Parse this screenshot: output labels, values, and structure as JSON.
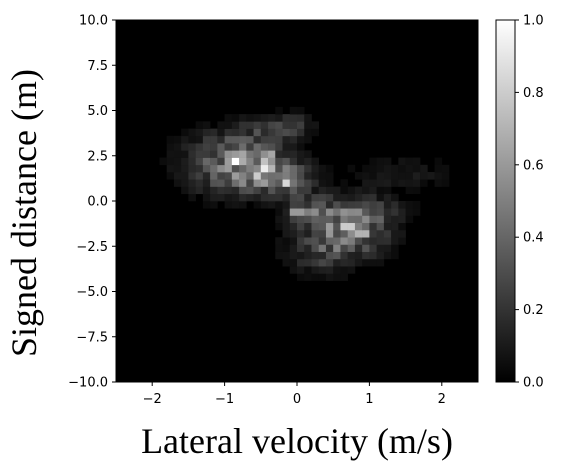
{
  "chart_data": {
    "type": "heatmap",
    "title": "",
    "xlabel": "Lateral velocity (m/s)",
    "ylabel": "Signed distance (m)",
    "xlim": [
      -2.5,
      2.5
    ],
    "ylim": [
      -10.0,
      10.0
    ],
    "x_ticks": [
      "−2",
      "−1",
      "0",
      "1",
      "2"
    ],
    "x_tick_values": [
      -2,
      -1,
      0,
      1,
      2
    ],
    "y_ticks": [
      "−10.0",
      "−7.5",
      "−5.0",
      "−2.5",
      "0.0",
      "2.5",
      "5.0",
      "7.5",
      "10.0"
    ],
    "y_tick_values": [
      -10.0,
      -7.5,
      -5.0,
      -2.5,
      0.0,
      2.5,
      5.0,
      7.5,
      10.0
    ],
    "colorbar": {
      "colormap": "gray",
      "range": [
        0.0,
        1.0
      ],
      "ticks": [
        "0.0",
        "0.2",
        "0.4",
        "0.6",
        "0.8",
        "1.0"
      ],
      "tick_values": [
        0.0,
        0.2,
        0.4,
        0.6,
        0.8,
        1.0
      ]
    },
    "grid": false,
    "clusters": [
      {
        "x": -0.85,
        "y": 2.1,
        "sx": 0.45,
        "sy": 1.1,
        "amp": 0.55
      },
      {
        "x": -0.55,
        "y": 1.9,
        "sx": 0.2,
        "sy": 0.6,
        "amp": 0.3
      },
      {
        "x": -0.2,
        "y": 1.2,
        "sx": 0.3,
        "sy": 0.7,
        "amp": 0.35
      },
      {
        "x": -0.35,
        "y": 4.0,
        "sx": 0.3,
        "sy": 0.5,
        "amp": 0.2
      },
      {
        "x": 0.0,
        "y": 4.3,
        "sx": 0.15,
        "sy": 0.4,
        "amp": 0.15
      },
      {
        "x": 0.75,
        "y": -1.4,
        "sx": 0.35,
        "sy": 1.0,
        "amp": 0.55
      },
      {
        "x": 0.2,
        "y": -0.6,
        "sx": 0.25,
        "sy": 0.6,
        "amp": 0.3
      },
      {
        "x": 0.35,
        "y": -2.8,
        "sx": 0.35,
        "sy": 0.8,
        "amp": 0.25
      },
      {
        "x": 1.45,
        "y": 1.5,
        "sx": 0.45,
        "sy": 0.6,
        "amp": 0.12
      },
      {
        "x": 1.15,
        "y": -0.5,
        "sx": 0.3,
        "sy": 0.5,
        "amp": 0.12
      }
    ],
    "peaks": [
      {
        "x": -0.88,
        "y": 2.2,
        "value": 1.0
      },
      {
        "x": -0.55,
        "y": 1.45,
        "value": 0.8
      },
      {
        "x": -0.18,
        "y": 1.0,
        "value": 0.85
      },
      {
        "x": 0.7,
        "y": -1.45,
        "value": 0.8
      },
      {
        "x": -0.38,
        "y": 2.75,
        "value": 0.65
      },
      {
        "x": 0.9,
        "y": -1.9,
        "value": 0.7
      },
      {
        "x": 0.0,
        "y": -0.6,
        "value": 0.6
      },
      {
        "x": 0.28,
        "y": -0.55,
        "value": 0.55
      }
    ]
  }
}
